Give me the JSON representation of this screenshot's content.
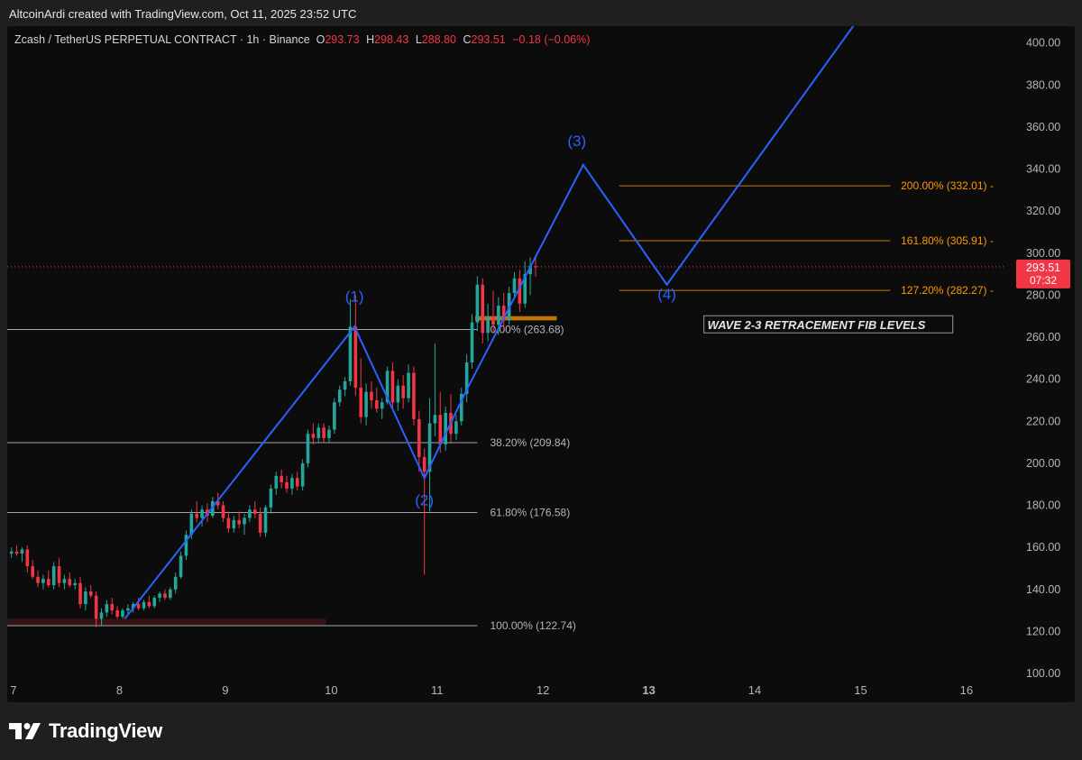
{
  "header": {
    "attribution": "AltcoinArdi created with TradingView.com, Oct 11, 2025 23:52 UTC"
  },
  "legend": {
    "symbol": "Zcash / TetherUS PERPETUAL CONTRACT · 1h · Binance",
    "open_label": "O",
    "open": "293.73",
    "high_label": "H",
    "high": "298.43",
    "low_label": "L",
    "low": "288.80",
    "close_label": "C",
    "close": "293.51",
    "change": "−0.18 (−0.06%)"
  },
  "price_tag": {
    "price": "293.51",
    "countdown": "07:32"
  },
  "footer": {
    "brand": "TradingView"
  },
  "colors": {
    "up": "#26a69a",
    "down": "#f23645",
    "wave": "#2962ff",
    "fib_retrace": "#b2b5be",
    "fib_ext": "#ff9800",
    "bg": "#0c0c0c"
  },
  "chart_data": {
    "type": "candlestick",
    "title": "Zcash / TetherUS PERPETUAL CONTRACT · 1h · Binance",
    "x_ticks": [
      "7",
      "8",
      "9",
      "10",
      "11",
      "12",
      "13",
      "14",
      "15",
      "16"
    ],
    "y_ticks": [
      "100.00",
      "120.00",
      "140.00",
      "160.00",
      "180.00",
      "200.00",
      "220.00",
      "240.00",
      "260.00",
      "280.00",
      "300.00",
      "320.00",
      "340.00",
      "360.00",
      "380.00",
      "400.00"
    ],
    "ylim": [
      94,
      408
    ],
    "xlim": [
      6.94,
      16.35
    ],
    "last_price": 293.51,
    "fib_retracement": [
      {
        "label": "0.00% (263.68)",
        "price": 263.68
      },
      {
        "label": "38.20% (209.84)",
        "price": 209.84
      },
      {
        "label": "61.80% (176.58)",
        "price": 176.58
      },
      {
        "label": "100.00% (122.74)",
        "price": 122.74
      }
    ],
    "fib_extension": [
      {
        "label": "200.00% (332.01)",
        "price": 332.01
      },
      {
        "label": "161.80% (305.91)",
        "price": 305.91
      },
      {
        "label": "127.20% (282.27)",
        "price": 282.27
      }
    ],
    "wave_labels": [
      {
        "label": "(1)",
        "day": 10.22,
        "price": 277
      },
      {
        "label": "(2)",
        "day": 10.88,
        "price": 180
      },
      {
        "label": "(3)",
        "day": 12.32,
        "price": 351
      },
      {
        "label": "(4)",
        "day": 13.17,
        "price": 278
      }
    ],
    "wave_path": [
      {
        "day": 8.05,
        "price": 126
      },
      {
        "day": 10.22,
        "price": 265
      },
      {
        "day": 10.88,
        "price": 193
      },
      {
        "day": 11.28,
        "price": 235
      },
      {
        "day": 12.38,
        "price": 342
      },
      {
        "day": 13.17,
        "price": 285
      },
      {
        "day": 14.93,
        "price": 408
      }
    ],
    "annotation": "WAVE 2-3 RETRACEMENT FIB LEVELS",
    "candles": [
      {
        "d": 6.98,
        "o": 157,
        "h": 160,
        "l": 155,
        "c": 158
      },
      {
        "d": 7.03,
        "o": 158,
        "h": 161,
        "l": 156,
        "c": 157
      },
      {
        "d": 7.08,
        "o": 157,
        "h": 160,
        "l": 153,
        "c": 159
      },
      {
        "d": 7.13,
        "o": 159,
        "h": 161,
        "l": 148,
        "c": 151
      },
      {
        "d": 7.18,
        "o": 151,
        "h": 154,
        "l": 145,
        "c": 146
      },
      {
        "d": 7.23,
        "o": 146,
        "h": 149,
        "l": 141,
        "c": 143
      },
      {
        "d": 7.28,
        "o": 143,
        "h": 147,
        "l": 140,
        "c": 145
      },
      {
        "d": 7.33,
        "o": 145,
        "h": 149,
        "l": 141,
        "c": 142
      },
      {
        "d": 7.38,
        "o": 142,
        "h": 153,
        "l": 140,
        "c": 151
      },
      {
        "d": 7.43,
        "o": 151,
        "h": 155,
        "l": 141,
        "c": 143
      },
      {
        "d": 7.48,
        "o": 143,
        "h": 147,
        "l": 140,
        "c": 145
      },
      {
        "d": 7.53,
        "o": 145,
        "h": 148,
        "l": 141,
        "c": 142
      },
      {
        "d": 7.58,
        "o": 142,
        "h": 145,
        "l": 140,
        "c": 143
      },
      {
        "d": 7.63,
        "o": 143,
        "h": 146,
        "l": 131,
        "c": 133
      },
      {
        "d": 7.68,
        "o": 133,
        "h": 141,
        "l": 130,
        "c": 139
      },
      {
        "d": 7.73,
        "o": 139,
        "h": 142,
        "l": 136,
        "c": 137
      },
      {
        "d": 7.78,
        "o": 137,
        "h": 139,
        "l": 122,
        "c": 126
      },
      {
        "d": 7.83,
        "o": 126,
        "h": 131,
        "l": 123,
        "c": 129
      },
      {
        "d": 7.88,
        "o": 129,
        "h": 135,
        "l": 127,
        "c": 133
      },
      {
        "d": 7.93,
        "o": 133,
        "h": 136,
        "l": 128,
        "c": 130
      },
      {
        "d": 7.98,
        "o": 130,
        "h": 132,
        "l": 126,
        "c": 127
      },
      {
        "d": 8.03,
        "o": 127,
        "h": 131,
        "l": 126,
        "c": 130
      },
      {
        "d": 8.08,
        "o": 130,
        "h": 133,
        "l": 128,
        "c": 131
      },
      {
        "d": 8.13,
        "o": 131,
        "h": 134,
        "l": 129,
        "c": 133
      },
      {
        "d": 8.18,
        "o": 133,
        "h": 136,
        "l": 130,
        "c": 131
      },
      {
        "d": 8.23,
        "o": 131,
        "h": 135,
        "l": 130,
        "c": 134
      },
      {
        "d": 8.28,
        "o": 134,
        "h": 137,
        "l": 131,
        "c": 132
      },
      {
        "d": 8.33,
        "o": 132,
        "h": 137,
        "l": 131,
        "c": 136
      },
      {
        "d": 8.38,
        "o": 136,
        "h": 139,
        "l": 134,
        "c": 138
      },
      {
        "d": 8.43,
        "o": 138,
        "h": 140,
        "l": 135,
        "c": 136
      },
      {
        "d": 8.48,
        "o": 136,
        "h": 141,
        "l": 135,
        "c": 140
      },
      {
        "d": 8.53,
        "o": 140,
        "h": 148,
        "l": 138,
        "c": 146
      },
      {
        "d": 8.58,
        "o": 146,
        "h": 158,
        "l": 145,
        "c": 156
      },
      {
        "d": 8.63,
        "o": 156,
        "h": 168,
        "l": 154,
        "c": 166
      },
      {
        "d": 8.68,
        "o": 166,
        "h": 178,
        "l": 164,
        "c": 176
      },
      {
        "d": 8.73,
        "o": 176,
        "h": 182,
        "l": 172,
        "c": 174
      },
      {
        "d": 8.78,
        "o": 174,
        "h": 180,
        "l": 170,
        "c": 178
      },
      {
        "d": 8.83,
        "o": 178,
        "h": 181,
        "l": 172,
        "c": 175
      },
      {
        "d": 8.88,
        "o": 175,
        "h": 184,
        "l": 174,
        "c": 182
      },
      {
        "d": 8.93,
        "o": 182,
        "h": 186,
        "l": 178,
        "c": 180
      },
      {
        "d": 8.98,
        "o": 180,
        "h": 182,
        "l": 172,
        "c": 174
      },
      {
        "d": 9.03,
        "o": 174,
        "h": 177,
        "l": 167,
        "c": 169
      },
      {
        "d": 9.08,
        "o": 169,
        "h": 175,
        "l": 167,
        "c": 173
      },
      {
        "d": 9.13,
        "o": 173,
        "h": 177,
        "l": 169,
        "c": 171
      },
      {
        "d": 9.18,
        "o": 171,
        "h": 176,
        "l": 166,
        "c": 174
      },
      {
        "d": 9.23,
        "o": 174,
        "h": 180,
        "l": 172,
        "c": 178
      },
      {
        "d": 9.28,
        "o": 178,
        "h": 182,
        "l": 174,
        "c": 176
      },
      {
        "d": 9.33,
        "o": 176,
        "h": 179,
        "l": 165,
        "c": 167
      },
      {
        "d": 9.38,
        "o": 167,
        "h": 180,
        "l": 165,
        "c": 179
      },
      {
        "d": 9.43,
        "o": 179,
        "h": 190,
        "l": 176,
        "c": 188
      },
      {
        "d": 9.48,
        "o": 188,
        "h": 196,
        "l": 185,
        "c": 194
      },
      {
        "d": 9.53,
        "o": 194,
        "h": 197,
        "l": 188,
        "c": 191
      },
      {
        "d": 9.58,
        "o": 191,
        "h": 194,
        "l": 186,
        "c": 188
      },
      {
        "d": 9.63,
        "o": 188,
        "h": 195,
        "l": 185,
        "c": 193
      },
      {
        "d": 9.68,
        "o": 193,
        "h": 196,
        "l": 187,
        "c": 189
      },
      {
        "d": 9.73,
        "o": 189,
        "h": 202,
        "l": 187,
        "c": 200
      },
      {
        "d": 9.78,
        "o": 200,
        "h": 216,
        "l": 198,
        "c": 214
      },
      {
        "d": 9.83,
        "o": 214,
        "h": 219,
        "l": 209,
        "c": 212
      },
      {
        "d": 9.88,
        "o": 212,
        "h": 219,
        "l": 210,
        "c": 217
      },
      {
        "d": 9.93,
        "o": 217,
        "h": 219,
        "l": 210,
        "c": 212
      },
      {
        "d": 9.98,
        "o": 212,
        "h": 218,
        "l": 210,
        "c": 216
      },
      {
        "d": 10.03,
        "o": 216,
        "h": 231,
        "l": 214,
        "c": 229
      },
      {
        "d": 10.08,
        "o": 229,
        "h": 237,
        "l": 227,
        "c": 235
      },
      {
        "d": 10.13,
        "o": 235,
        "h": 241,
        "l": 232,
        "c": 239
      },
      {
        "d": 10.18,
        "o": 239,
        "h": 278,
        "l": 237,
        "c": 265
      },
      {
        "d": 10.23,
        "o": 265,
        "h": 280,
        "l": 232,
        "c": 236
      },
      {
        "d": 10.28,
        "o": 236,
        "h": 250,
        "l": 219,
        "c": 222
      },
      {
        "d": 10.33,
        "o": 222,
        "h": 238,
        "l": 218,
        "c": 234
      },
      {
        "d": 10.38,
        "o": 234,
        "h": 239,
        "l": 226,
        "c": 230
      },
      {
        "d": 10.43,
        "o": 230,
        "h": 236,
        "l": 224,
        "c": 226
      },
      {
        "d": 10.48,
        "o": 226,
        "h": 231,
        "l": 221,
        "c": 229
      },
      {
        "d": 10.53,
        "o": 229,
        "h": 246,
        "l": 228,
        "c": 244
      },
      {
        "d": 10.58,
        "o": 244,
        "h": 248,
        "l": 226,
        "c": 229
      },
      {
        "d": 10.63,
        "o": 229,
        "h": 240,
        "l": 225,
        "c": 237
      },
      {
        "d": 10.68,
        "o": 237,
        "h": 242,
        "l": 226,
        "c": 231
      },
      {
        "d": 10.73,
        "o": 231,
        "h": 247,
        "l": 229,
        "c": 243
      },
      {
        "d": 10.78,
        "o": 243,
        "h": 246,
        "l": 218,
        "c": 221
      },
      {
        "d": 10.83,
        "o": 221,
        "h": 225,
        "l": 196,
        "c": 203
      },
      {
        "d": 10.88,
        "o": 203,
        "h": 207,
        "l": 147,
        "c": 196
      },
      {
        "d": 10.93,
        "o": 196,
        "h": 231,
        "l": 177,
        "c": 219
      },
      {
        "d": 10.98,
        "o": 219,
        "h": 257,
        "l": 213,
        "c": 223
      },
      {
        "d": 11.03,
        "o": 223,
        "h": 234,
        "l": 205,
        "c": 209
      },
      {
        "d": 11.08,
        "o": 209,
        "h": 227,
        "l": 206,
        "c": 224
      },
      {
        "d": 11.13,
        "o": 224,
        "h": 233,
        "l": 210,
        "c": 214
      },
      {
        "d": 11.18,
        "o": 214,
        "h": 223,
        "l": 211,
        "c": 220
      },
      {
        "d": 11.23,
        "o": 220,
        "h": 236,
        "l": 218,
        "c": 233
      },
      {
        "d": 11.28,
        "o": 233,
        "h": 252,
        "l": 229,
        "c": 248
      },
      {
        "d": 11.33,
        "o": 248,
        "h": 271,
        "l": 245,
        "c": 267
      },
      {
        "d": 11.38,
        "o": 267,
        "h": 289,
        "l": 263,
        "c": 285
      },
      {
        "d": 11.43,
        "o": 285,
        "h": 288,
        "l": 257,
        "c": 262
      },
      {
        "d": 11.48,
        "o": 262,
        "h": 276,
        "l": 258,
        "c": 270
      },
      {
        "d": 11.53,
        "o": 270,
        "h": 282,
        "l": 262,
        "c": 266
      },
      {
        "d": 11.58,
        "o": 266,
        "h": 279,
        "l": 261,
        "c": 275
      },
      {
        "d": 11.63,
        "o": 275,
        "h": 281,
        "l": 264,
        "c": 268
      },
      {
        "d": 11.68,
        "o": 268,
        "h": 284,
        "l": 266,
        "c": 281
      },
      {
        "d": 11.73,
        "o": 281,
        "h": 291,
        "l": 278,
        "c": 288
      },
      {
        "d": 11.78,
        "o": 288,
        "h": 292,
        "l": 272,
        "c": 276
      },
      {
        "d": 11.83,
        "o": 276,
        "h": 296,
        "l": 274,
        "c": 290
      },
      {
        "d": 11.88,
        "o": 290,
        "h": 298,
        "l": 280,
        "c": 294
      },
      {
        "d": 11.93,
        "o": 293.73,
        "h": 298.43,
        "l": 288.8,
        "c": 293.51
      }
    ]
  }
}
